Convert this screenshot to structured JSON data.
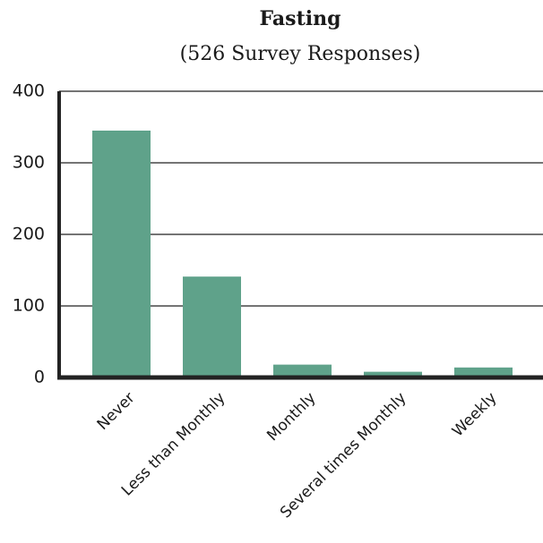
{
  "chart_data": {
    "type": "bar",
    "title": "Fasting",
    "subtitle": "(526 Survey Responses)",
    "categories": [
      "Never",
      "Less than Monthly",
      "Monthly",
      "Several times Monthly",
      "Weekly"
    ],
    "values": [
      345,
      141,
      18,
      8,
      14
    ],
    "color": "#5fa28a",
    "ylim": [
      0,
      400
    ],
    "yticks": [
      0,
      100,
      200,
      300,
      400
    ],
    "grid": true
  }
}
